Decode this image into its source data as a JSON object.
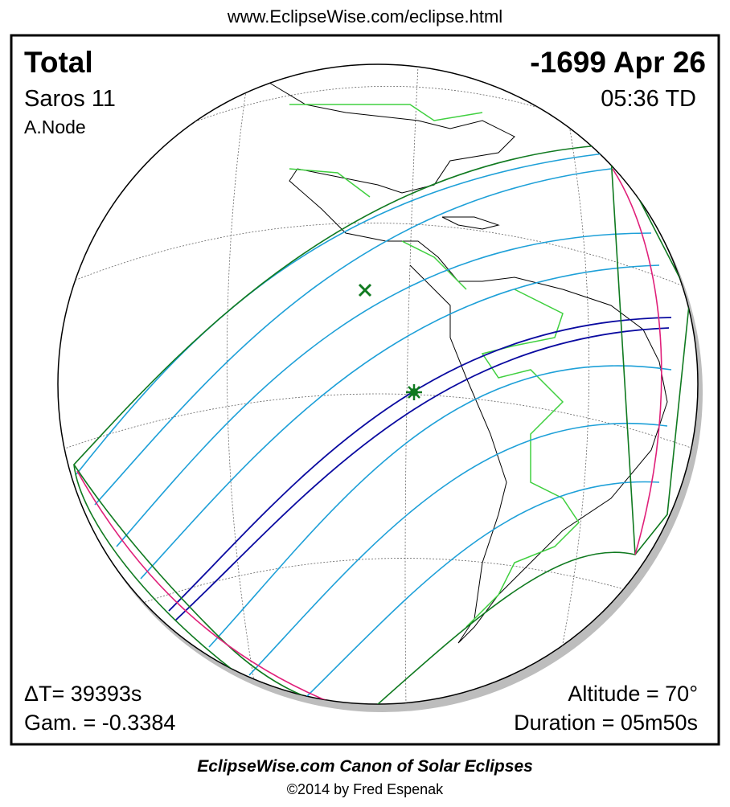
{
  "header": {
    "url": "www.EclipseWise.com/eclipse.html"
  },
  "panel": {
    "eclipse_type": "Total",
    "saros": "Saros  11",
    "node": "A.Node",
    "date": "-1699 Apr 26",
    "time": "05:36 TD",
    "delta_t": "ΔT=  39393s",
    "gamma": "Gam. = -0.3384",
    "altitude": "Altitude = 70°",
    "duration": "Duration = 05m50s"
  },
  "footer": {
    "title": "EclipseWise.com Canon of Solar Eclipses",
    "credit": "©2014 by Fred Espenak"
  }
}
